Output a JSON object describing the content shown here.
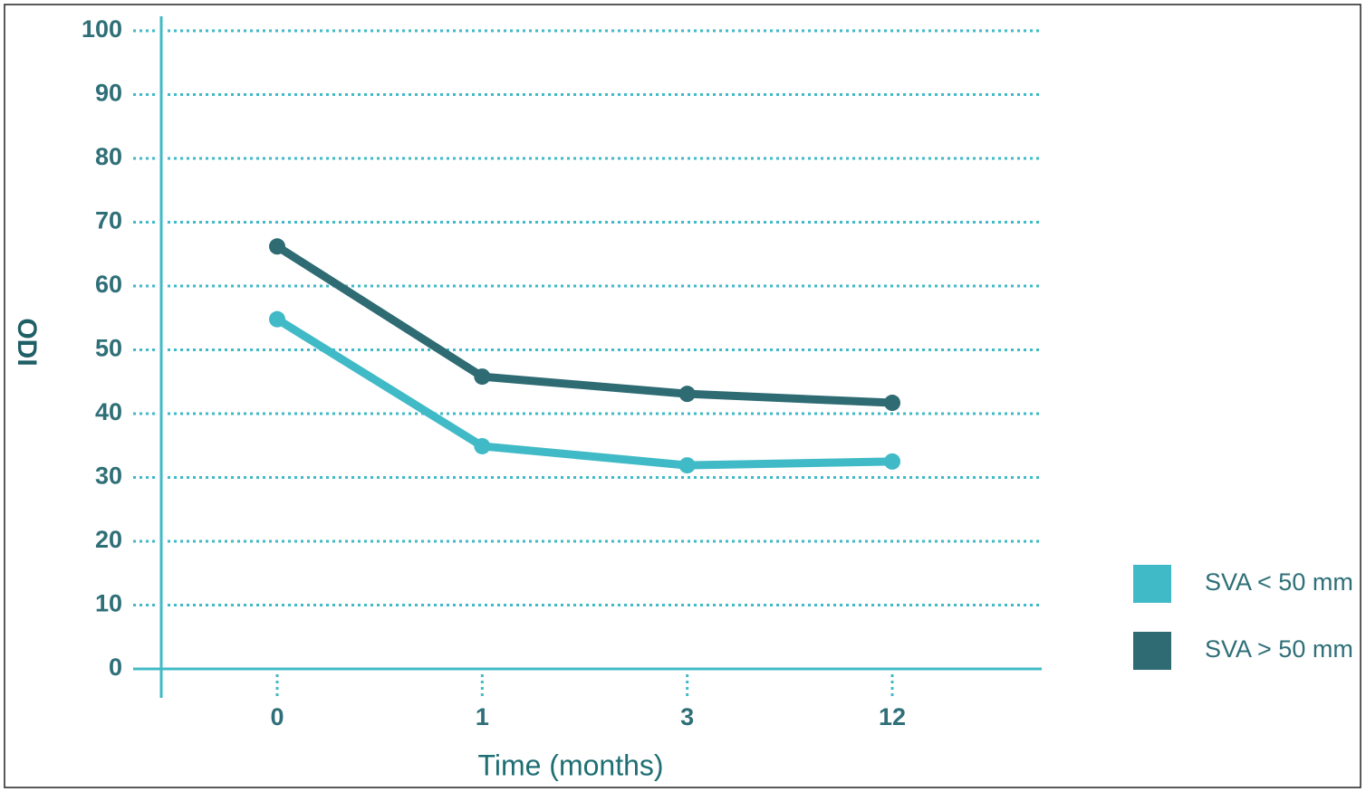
{
  "chart_data": {
    "type": "line",
    "x_label": "Time (months)",
    "y_label": "ODI",
    "categories": [
      "0",
      "1",
      "3",
      "12"
    ],
    "series": [
      {
        "name": "SVA < 50 mm",
        "color": "#40bac6",
        "values": [
          54.8,
          34.9,
          31.9,
          32.5
        ]
      },
      {
        "name": "SVA > 50 mm",
        "color": "#2e6b73",
        "values": [
          66.2,
          45.8,
          43.1,
          41.7
        ]
      }
    ],
    "ylim": [
      0,
      100
    ],
    "yticks": [
      0,
      10,
      20,
      30,
      40,
      50,
      60,
      70,
      80,
      90,
      100
    ],
    "grid": true,
    "legend": "right"
  }
}
